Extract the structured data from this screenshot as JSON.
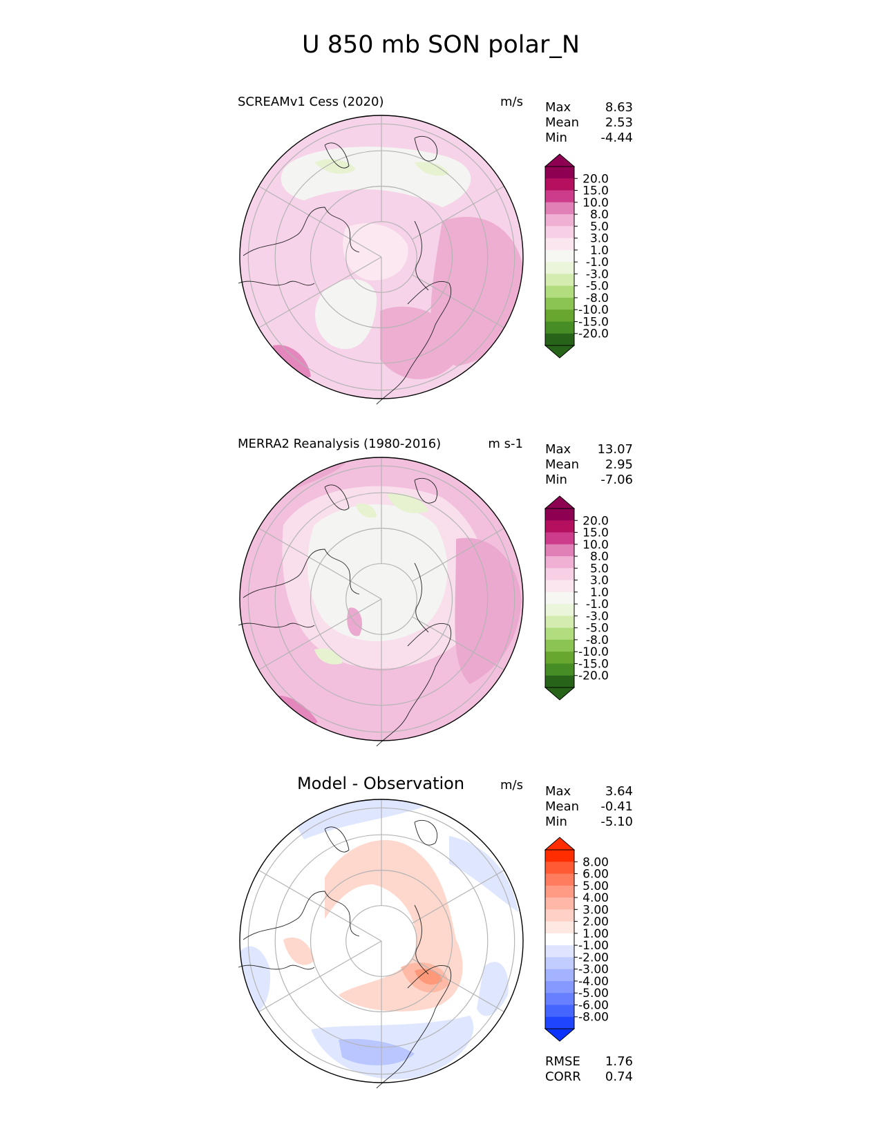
{
  "title": "U 850 mb SON polar_N",
  "panels": [
    {
      "id": "test",
      "left_label": "SCREAMv1 Cess (2020)",
      "units": "m/s",
      "stats": [
        {
          "label": "Max",
          "value": "8.63"
        },
        {
          "label": "Mean",
          "value": "2.53"
        },
        {
          "label": "Min",
          "value": "-4.44"
        }
      ],
      "colorbar": {
        "tick_labels": [
          "20.0",
          "15.0",
          "10.0",
          "8.0",
          "5.0",
          "3.0",
          "1.0",
          "-1.0",
          "-3.0",
          "-5.0",
          "-8.0",
          "-10.0",
          "-15.0",
          "-20.0"
        ],
        "colors": [
          "#8e0152",
          "#b5105f",
          "#cd3c8b",
          "#e180b7",
          "#f0b0d4",
          "#f7d0e6",
          "#fbe6f0",
          "#f6f6f3",
          "#eaf5da",
          "#d4ecb0",
          "#b2dd7f",
          "#8cc453",
          "#67a62f",
          "#478d25",
          "#276419"
        ],
        "ext_top": "#8e0152",
        "ext_bottom": "#276419"
      },
      "map_palette": {
        "base": "#f6d3e8",
        "weak": "#fbe8f1",
        "neutral": "#f4f5f2",
        "negative": "#e6f2d0",
        "strong": "#eeaed2",
        "stronger": "#e487bd"
      }
    },
    {
      "id": "ref",
      "left_label": "MERRA2 Reanalysis (1980-2016)",
      "units": "m s-1",
      "stats": [
        {
          "label": "Max",
          "value": "13.07"
        },
        {
          "label": "Mean",
          "value": "2.95"
        },
        {
          "label": "Min",
          "value": "-7.06"
        }
      ],
      "colorbar": {
        "tick_labels": [
          "20.0",
          "15.0",
          "10.0",
          "8.0",
          "5.0",
          "3.0",
          "1.0",
          "-1.0",
          "-3.0",
          "-5.0",
          "-8.0",
          "-10.0",
          "-15.0",
          "-20.0"
        ],
        "colors": [
          "#8e0152",
          "#b5105f",
          "#cd3c8b",
          "#e180b7",
          "#f0b0d4",
          "#f7d0e6",
          "#fbe6f0",
          "#f6f6f3",
          "#eaf5da",
          "#d4ecb0",
          "#b2dd7f",
          "#8cc453",
          "#67a62f",
          "#478d25",
          "#276419"
        ],
        "ext_top": "#8e0152",
        "ext_bottom": "#276419"
      },
      "map_palette": {
        "base": "#f2c0dd",
        "weak": "#f9dfec",
        "neutral": "#f4f5f2",
        "negative": "#e6f2d0",
        "strong": "#eba9cf",
        "stronger": "#e487bd"
      }
    },
    {
      "id": "diff",
      "center_title": "Model - Observation",
      "units": "m/s",
      "stats": [
        {
          "label": "Max",
          "value": "3.64"
        },
        {
          "label": "Mean",
          "value": "-0.41"
        },
        {
          "label": "Min",
          "value": "-5.10"
        }
      ],
      "colorbar": {
        "tick_labels": [
          "8.00",
          "6.00",
          "5.00",
          "4.00",
          "3.00",
          "2.00",
          "1.00",
          "-1.00",
          "-2.00",
          "-3.00",
          "-4.00",
          "-5.00",
          "-6.00",
          "-8.00"
        ],
        "colors": [
          "#ff2d00",
          "#ff5a33",
          "#ff7c5e",
          "#ff9a85",
          "#ffb7a7",
          "#ffd1c6",
          "#ffe8e2",
          "#ffffff",
          "#dfe5ff",
          "#c1ccff",
          "#a3b3ff",
          "#8599ff",
          "#6680ff",
          "#4466ff",
          "#1f45ff"
        ],
        "ext_top": "#ff2d00",
        "ext_bottom": "#0b32ff"
      },
      "map_palette": {
        "base": "#ffffff",
        "pos1": "#ffd8cd",
        "pos2": "#ffb9a4",
        "pos3": "#ff9878",
        "neg1": "#dfe6ff",
        "neg2": "#b9c6ff",
        "neg3": "#8ca1ff"
      },
      "metrics": [
        {
          "label": "RMSE",
          "value": "1.76"
        },
        {
          "label": "CORR",
          "value": "0.74"
        }
      ]
    }
  ]
}
